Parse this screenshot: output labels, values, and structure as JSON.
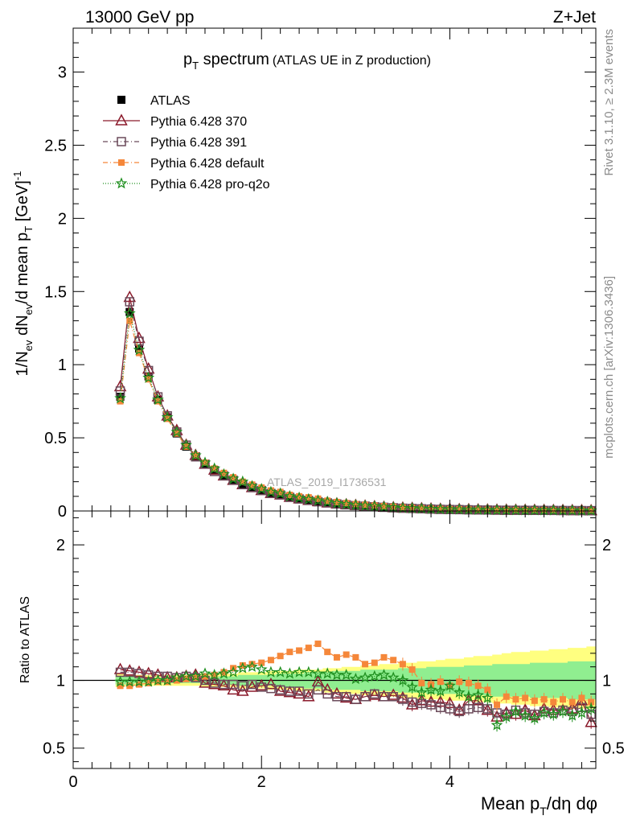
{
  "header": {
    "left": "13000 GeV pp",
    "right": "Z+Jet"
  },
  "side": {
    "rivet": "Rivet 3.1.10, ≥ 2.3M events",
    "mcplots": "mcplots.cern.ch [arXiv:1306.3436]"
  },
  "watermark": "ATLAS_2019_I1736531",
  "colors": {
    "atlas": "#000000",
    "p370": "#8b1a2b",
    "p391": "#6b4a5a",
    "pdefault": "#f5873a",
    "pq2o": "#1f8f1f",
    "band_outer": "#ffff80",
    "band_inner": "#90ee90"
  },
  "chart_data": [
    {
      "type": "line",
      "title": "p_T spectrum (ATLAS UE in Z production)",
      "xlabel": "Mean p_T/dη dφ",
      "ylabel": "1/N_ev dN_ev/d mean p_T [GeV]^-1",
      "xlim": [
        0,
        5.55
      ],
      "ylim": [
        0,
        3.3
      ],
      "yticks": [
        "0",
        "0.5",
        "1",
        "1.5",
        "2",
        "2.5",
        "3"
      ],
      "legend": [
        "ATLAS",
        "Pythia 6.428 370",
        "Pythia 6.428 391",
        "Pythia 6.428 default",
        "Pythia 6.428 pro-q2o"
      ],
      "legend_position": "top-left",
      "x": [
        0.5,
        0.6,
        0.7,
        0.8,
        0.9,
        1.0,
        1.1,
        1.2,
        1.3,
        1.4,
        1.5,
        1.6,
        1.7,
        1.8,
        1.9,
        2.0,
        2.1,
        2.2,
        2.3,
        2.4,
        2.5,
        2.6,
        2.7,
        2.8,
        2.9,
        3.0,
        3.1,
        3.2,
        3.3,
        3.4,
        3.5,
        3.6,
        3.7,
        3.8,
        3.9,
        4.0,
        4.1,
        4.2,
        4.3,
        4.4,
        4.5,
        4.6,
        4.7,
        4.8,
        4.9,
        5.0,
        5.1,
        5.2,
        5.3,
        5.4,
        5.5
      ],
      "series": [
        {
          "name": "ATLAS",
          "values": [
            0.78,
            1.36,
            1.11,
            0.92,
            0.76,
            0.64,
            0.53,
            0.44,
            0.37,
            0.32,
            0.28,
            0.24,
            0.21,
            0.18,
            0.16,
            0.14,
            0.12,
            0.11,
            0.095,
            0.085,
            0.075,
            0.066,
            0.058,
            0.051,
            0.045,
            0.04,
            0.036,
            0.032,
            0.028,
            0.025,
            0.022,
            0.02,
            0.018,
            0.016,
            0.014,
            0.013,
            0.012,
            0.011,
            0.01,
            0.009,
            0.008,
            0.0075,
            0.007,
            0.0065,
            0.006,
            0.0055,
            0.005,
            0.0045,
            0.004,
            0.0035,
            0.003
          ]
        },
        {
          "name": "Pythia 6.428 370",
          "values": [
            0.85,
            1.46,
            1.18,
            0.97,
            0.78,
            0.65,
            0.55,
            0.45,
            0.38,
            0.32,
            0.28,
            0.24,
            0.21,
            0.18,
            0.16,
            0.14,
            0.12,
            0.11,
            0.094,
            0.083,
            0.073,
            0.064,
            0.056,
            0.049,
            0.043,
            0.038,
            0.034,
            0.03,
            0.026,
            0.023,
            0.02,
            0.018,
            0.016,
            0.014,
            0.012,
            0.011,
            0.01,
            0.009,
            0.008,
            0.007,
            0.006,
            0.0055,
            0.0052,
            0.0049,
            0.0046,
            0.0042,
            0.0038,
            0.0035,
            0.003,
            0.0027,
            0.002
          ]
        },
        {
          "name": "Pythia 6.428 391",
          "values": [
            0.82,
            1.43,
            1.16,
            0.96,
            0.78,
            0.65,
            0.54,
            0.45,
            0.37,
            0.32,
            0.27,
            0.24,
            0.21,
            0.18,
            0.16,
            0.14,
            0.12,
            0.11,
            0.093,
            0.082,
            0.072,
            0.063,
            0.055,
            0.048,
            0.042,
            0.037,
            0.033,
            0.029,
            0.025,
            0.022,
            0.019,
            0.017,
            0.015,
            0.013,
            0.011,
            0.01,
            0.009,
            0.008,
            0.007,
            0.0065,
            0.0058,
            0.0053,
            0.005,
            0.0047,
            0.0044,
            0.004,
            0.0037,
            0.0034,
            0.003,
            0.0027,
            0.0022
          ]
        },
        {
          "name": "Pythia 6.428 default",
          "values": [
            0.75,
            1.3,
            1.08,
            0.9,
            0.75,
            0.63,
            0.53,
            0.44,
            0.38,
            0.33,
            0.29,
            0.26,
            0.23,
            0.2,
            0.18,
            0.16,
            0.14,
            0.13,
            0.11,
            0.1,
            0.093,
            0.084,
            0.07,
            0.061,
            0.054,
            0.047,
            0.042,
            0.037,
            0.033,
            0.029,
            0.024,
            0.021,
            0.018,
            0.016,
            0.014,
            0.012,
            0.011,
            0.01,
            0.0088,
            0.0078,
            0.007,
            0.0064,
            0.0059,
            0.0054,
            0.005,
            0.0046,
            0.0042,
            0.0038,
            0.0034,
            0.003,
            0.0025
          ]
        },
        {
          "name": "Pythia 6.428 pro-q2o",
          "values": [
            0.77,
            1.35,
            1.1,
            0.91,
            0.76,
            0.64,
            0.54,
            0.45,
            0.38,
            0.33,
            0.29,
            0.25,
            0.22,
            0.2,
            0.17,
            0.15,
            0.13,
            0.12,
            0.1,
            0.09,
            0.08,
            0.071,
            0.062,
            0.053,
            0.046,
            0.04,
            0.036,
            0.032,
            0.028,
            0.024,
            0.02,
            0.018,
            0.016,
            0.014,
            0.012,
            0.011,
            0.01,
            0.009,
            0.008,
            0.007,
            0.0062,
            0.0057,
            0.0053,
            0.0049,
            0.0045,
            0.0041,
            0.0037,
            0.0034,
            0.003,
            0.0027,
            0.0023
          ]
        }
      ]
    },
    {
      "type": "line",
      "title": "",
      "xlabel": "Mean p_T/dη dφ",
      "ylabel": "Ratio to ATLAS",
      "xlim": [
        0,
        5.55
      ],
      "ylim": [
        0.35,
        2.25
      ],
      "yticks": [
        "0.5",
        "1",
        "2"
      ],
      "xticks": [
        "0",
        "2",
        "4"
      ],
      "reference_line": 1,
      "band_outer": [
        [
          0.95,
          1.05
        ],
        [
          0.96,
          1.04
        ],
        [
          0.96,
          1.04
        ],
        [
          0.96,
          1.04
        ],
        [
          0.96,
          1.04
        ],
        [
          0.96,
          1.04
        ],
        [
          0.96,
          1.04
        ],
        [
          0.96,
          1.04
        ],
        [
          0.96,
          1.04
        ],
        [
          0.95,
          1.05
        ],
        [
          0.95,
          1.05
        ],
        [
          0.95,
          1.05
        ],
        [
          0.95,
          1.05
        ],
        [
          0.94,
          1.06
        ],
        [
          0.94,
          1.06
        ],
        [
          0.94,
          1.06
        ],
        [
          0.93,
          1.07
        ],
        [
          0.93,
          1.07
        ],
        [
          0.93,
          1.07
        ],
        [
          0.92,
          1.08
        ],
        [
          0.92,
          1.08
        ],
        [
          0.92,
          1.08
        ],
        [
          0.91,
          1.09
        ],
        [
          0.91,
          1.09
        ],
        [
          0.9,
          1.1
        ],
        [
          0.9,
          1.1
        ],
        [
          0.89,
          1.11
        ],
        [
          0.89,
          1.11
        ],
        [
          0.88,
          1.12
        ],
        [
          0.88,
          1.12
        ],
        [
          0.87,
          1.13
        ],
        [
          0.87,
          1.13
        ],
        [
          0.86,
          1.14
        ],
        [
          0.86,
          1.14
        ],
        [
          0.86,
          1.15
        ],
        [
          0.85,
          1.16
        ],
        [
          0.85,
          1.16
        ],
        [
          0.85,
          1.17
        ],
        [
          0.84,
          1.18
        ],
        [
          0.84,
          1.18
        ],
        [
          0.83,
          1.19
        ],
        [
          0.83,
          1.2
        ],
        [
          0.82,
          1.21
        ],
        [
          0.82,
          1.21
        ],
        [
          0.81,
          1.22
        ],
        [
          0.81,
          1.22
        ],
        [
          0.8,
          1.23
        ],
        [
          0.8,
          1.23
        ],
        [
          0.79,
          1.24
        ],
        [
          0.79,
          1.24
        ],
        [
          0.79,
          1.25
        ]
      ],
      "band_inner": [
        [
          0.97,
          1.03
        ],
        [
          0.97,
          1.03
        ],
        [
          0.98,
          1.02
        ],
        [
          0.98,
          1.02
        ],
        [
          0.98,
          1.02
        ],
        [
          0.98,
          1.02
        ],
        [
          0.98,
          1.02
        ],
        [
          0.98,
          1.02
        ],
        [
          0.98,
          1.02
        ],
        [
          0.97,
          1.03
        ],
        [
          0.97,
          1.03
        ],
        [
          0.97,
          1.03
        ],
        [
          0.97,
          1.03
        ],
        [
          0.96,
          1.04
        ],
        [
          0.96,
          1.04
        ],
        [
          0.96,
          1.04
        ],
        [
          0.96,
          1.04
        ],
        [
          0.95,
          1.05
        ],
        [
          0.95,
          1.05
        ],
        [
          0.95,
          1.05
        ],
        [
          0.94,
          1.06
        ],
        [
          0.94,
          1.06
        ],
        [
          0.94,
          1.06
        ],
        [
          0.93,
          1.07
        ],
        [
          0.93,
          1.07
        ],
        [
          0.93,
          1.07
        ],
        [
          0.92,
          1.08
        ],
        [
          0.92,
          1.08
        ],
        [
          0.92,
          1.08
        ],
        [
          0.92,
          1.08
        ],
        [
          0.91,
          1.09
        ],
        [
          0.91,
          1.09
        ],
        [
          0.91,
          1.09
        ],
        [
          0.9,
          1.1
        ],
        [
          0.9,
          1.1
        ],
        [
          0.9,
          1.1
        ],
        [
          0.9,
          1.1
        ],
        [
          0.89,
          1.11
        ],
        [
          0.89,
          1.11
        ],
        [
          0.89,
          1.11
        ],
        [
          0.88,
          1.12
        ],
        [
          0.88,
          1.12
        ],
        [
          0.88,
          1.12
        ],
        [
          0.88,
          1.12
        ],
        [
          0.87,
          1.13
        ],
        [
          0.87,
          1.13
        ],
        [
          0.87,
          1.13
        ],
        [
          0.87,
          1.13
        ],
        [
          0.86,
          1.14
        ],
        [
          0.86,
          1.14
        ],
        [
          0.86,
          1.14
        ]
      ],
      "x": [
        0.5,
        0.6,
        0.7,
        0.8,
        0.9,
        1.0,
        1.1,
        1.2,
        1.3,
        1.4,
        1.5,
        1.6,
        1.7,
        1.8,
        1.9,
        2.0,
        2.1,
        2.2,
        2.3,
        2.4,
        2.5,
        2.6,
        2.7,
        2.8,
        2.9,
        3.0,
        3.1,
        3.2,
        3.3,
        3.4,
        3.5,
        3.6,
        3.7,
        3.8,
        3.9,
        4.0,
        4.1,
        4.2,
        4.3,
        4.4,
        4.5,
        4.6,
        4.7,
        4.8,
        4.9,
        5.0,
        5.1,
        5.2,
        5.3,
        5.4,
        5.5
      ],
      "series": [
        {
          "name": "Pythia 6.428 370",
          "values": [
            1.08,
            1.07,
            1.06,
            1.05,
            1.04,
            1.02,
            1.02,
            1.03,
            1.04,
            0.98,
            0.97,
            0.96,
            0.93,
            0.92,
            0.95,
            0.96,
            0.97,
            0.92,
            0.91,
            0.9,
            0.88,
            0.99,
            0.93,
            0.9,
            0.87,
            0.86,
            0.88,
            0.89,
            0.88,
            0.89,
            0.87,
            0.82,
            0.85,
            0.84,
            0.84,
            0.83,
            0.78,
            0.85,
            0.85,
            0.78,
            0.73,
            0.76,
            0.75,
            0.78,
            0.74,
            0.79,
            0.78,
            0.78,
            0.79,
            0.85,
            0.69
          ]
        },
        {
          "name": "Pythia 6.428 391",
          "values": [
            1.06,
            1.06,
            1.05,
            1.04,
            1.03,
            1.03,
            1.02,
            1.03,
            1.02,
            1.0,
            0.98,
            0.97,
            0.97,
            0.96,
            0.97,
            0.95,
            0.94,
            0.93,
            0.92,
            0.92,
            0.9,
            0.93,
            0.9,
            0.88,
            0.88,
            0.86,
            0.88,
            0.9,
            0.88,
            0.88,
            0.86,
            0.84,
            0.83,
            0.82,
            0.8,
            0.79,
            0.77,
            0.79,
            0.8,
            0.79,
            0.76,
            0.75,
            0.78,
            0.76,
            0.75,
            0.77,
            0.76,
            0.78,
            0.77,
            0.8,
            0.75
          ]
        },
        {
          "name": "Pythia 6.428 default",
          "values": [
            0.96,
            0.96,
            0.97,
            0.98,
            0.99,
            0.99,
            1.0,
            1.01,
            1.02,
            1.03,
            1.04,
            1.06,
            1.09,
            1.11,
            1.12,
            1.13,
            1.15,
            1.18,
            1.21,
            1.22,
            1.24,
            1.27,
            1.21,
            1.17,
            1.19,
            1.17,
            1.12,
            1.13,
            1.17,
            1.15,
            1.12,
            1.08,
            0.98,
            0.97,
            0.99,
            0.96,
            0.99,
            0.98,
            0.96,
            0.93,
            0.82,
            0.88,
            0.86,
            0.87,
            0.85,
            0.86,
            0.84,
            0.86,
            0.84,
            0.87,
            0.84
          ]
        },
        {
          "name": "Pythia 6.428 pro-q2o",
          "values": [
            0.99,
            0.99,
            0.99,
            0.99,
            1.0,
            1.0,
            1.02,
            1.03,
            1.03,
            1.05,
            1.04,
            1.05,
            1.06,
            1.09,
            1.1,
            1.08,
            1.06,
            1.06,
            1.05,
            1.06,
            1.06,
            1.05,
            1.05,
            1.04,
            1.04,
            1.01,
            1.02,
            1.03,
            1.04,
            1.02,
            1.0,
            0.95,
            0.91,
            0.93,
            0.92,
            0.96,
            0.91,
            0.88,
            0.89,
            0.87,
            0.67,
            0.73,
            0.77,
            0.74,
            0.72,
            0.76,
            0.75,
            0.77,
            0.74,
            0.76,
            0.79
          ]
        }
      ]
    }
  ]
}
